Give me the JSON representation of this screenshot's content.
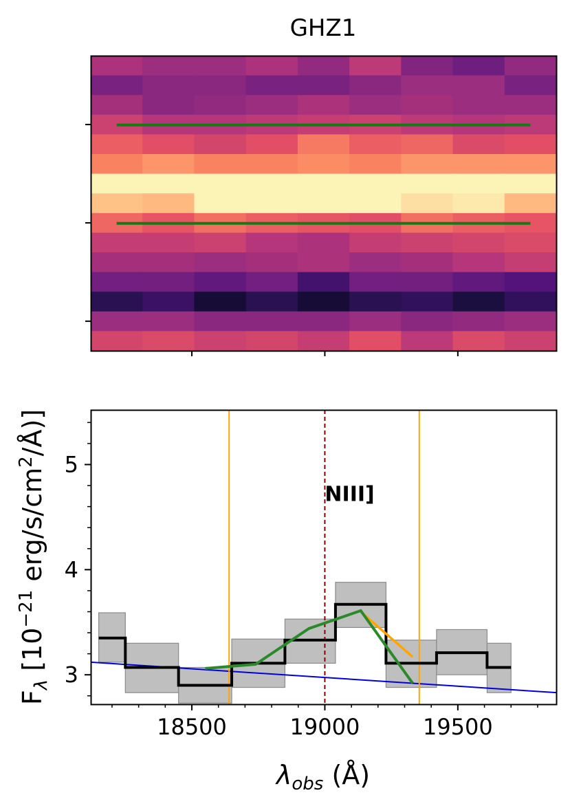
{
  "chart_data": [
    {
      "type": "heatmap",
      "title": "GHZ1",
      "grid": false,
      "colormap": "magma",
      "rows": 15,
      "cols": 9,
      "values": [
        [
          0.48,
          0.44,
          0.44,
          0.48,
          0.42,
          0.52,
          0.38,
          0.33,
          0.42
        ],
        [
          0.36,
          0.4,
          0.4,
          0.36,
          0.36,
          0.4,
          0.44,
          0.44,
          0.36
        ],
        [
          0.46,
          0.4,
          0.42,
          0.44,
          0.48,
          0.44,
          0.46,
          0.44,
          0.44
        ],
        [
          0.56,
          0.5,
          0.5,
          0.52,
          0.54,
          0.56,
          0.52,
          0.5,
          0.52
        ],
        [
          0.66,
          0.62,
          0.58,
          0.62,
          0.72,
          0.66,
          0.68,
          0.6,
          0.62
        ],
        [
          0.74,
          0.78,
          0.74,
          0.74,
          0.76,
          0.74,
          0.78,
          0.78,
          0.78
        ],
        [
          0.98,
          0.98,
          0.98,
          0.98,
          0.98,
          0.98,
          0.98,
          0.98,
          0.98
        ],
        [
          0.88,
          0.86,
          0.98,
          0.98,
          0.98,
          0.98,
          0.94,
          0.96,
          0.86
        ],
        [
          0.68,
          0.64,
          0.7,
          0.66,
          0.64,
          0.62,
          0.7,
          0.66,
          0.64
        ],
        [
          0.54,
          0.54,
          0.56,
          0.5,
          0.48,
          0.54,
          0.56,
          0.58,
          0.6
        ],
        [
          0.46,
          0.46,
          0.44,
          0.46,
          0.48,
          0.44,
          0.46,
          0.5,
          0.54
        ],
        [
          0.34,
          0.34,
          0.3,
          0.34,
          0.22,
          0.34,
          0.34,
          0.3,
          0.26
        ],
        [
          0.16,
          0.2,
          0.1,
          0.16,
          0.1,
          0.16,
          0.18,
          0.12,
          0.18
        ],
        [
          0.44,
          0.44,
          0.4,
          0.4,
          0.4,
          0.44,
          0.4,
          0.42,
          0.44
        ],
        [
          0.58,
          0.6,
          0.56,
          0.58,
          0.54,
          0.62,
          0.52,
          0.6,
          0.56
        ]
      ],
      "extraction_lines": [
        {
          "row_center": 3.5,
          "color": "#147a14"
        },
        {
          "row_center": 8.5,
          "color": "#147a14"
        }
      ],
      "y_tick_rows": [
        3.5,
        8.5,
        13.5
      ],
      "x_tick_wavelengths": [
        18500,
        19000,
        19500
      ],
      "colors": {
        "line": "#147a14"
      }
    },
    {
      "type": "line",
      "xlabel_symbol": "λ",
      "xlabel_sub": "obs",
      "xlabel_unit": " (Å)",
      "ylabel_prefix": "F",
      "ylabel_sub": "λ",
      "ylabel_mid": " [10",
      "ylabel_exp": "−21",
      "ylabel_mid2": " erg/s/cm",
      "ylabel_exp2": "2",
      "ylabel_suffix": "/Å)]",
      "xlim": [
        18120,
        19870
      ],
      "ylim": [
        2.72,
        5.52
      ],
      "xticks": [
        18500,
        19000,
        19500
      ],
      "xtick_labels": [
        "18500",
        "19000",
        "19500"
      ],
      "yticks": [
        3,
        4,
        5
      ],
      "ytick_labels": [
        "3",
        "4",
        "5"
      ],
      "grid": false,
      "annotation": {
        "text": "NIII]",
        "x": 19000,
        "y": 4.72
      },
      "colors": {
        "data": "#000000",
        "error": "#bfbfbf",
        "fit": "#2a8a2a",
        "fit_alt": "#ffa500",
        "continuum": "#0000dd",
        "window": "#ffa500",
        "line_marker": "#8b0000"
      },
      "series": [
        {
          "kind": "step",
          "color": "#000000",
          "bins": [
            {
              "x0": 18150,
              "x1": 18250,
              "y": 3.35,
              "lo": 3.12,
              "hi": 3.59
            },
            {
              "x0": 18250,
              "x1": 18450,
              "y": 3.07,
              "lo": 2.83,
              "hi": 3.3
            },
            {
              "x0": 18450,
              "x1": 18650,
              "y": 2.9,
              "lo": 2.73,
              "hi": 3.07
            },
            {
              "x0": 18650,
              "x1": 18850,
              "y": 3.11,
              "lo": 2.88,
              "hi": 3.34
            },
            {
              "x0": 18850,
              "x1": 19040,
              "y": 3.33,
              "lo": 3.11,
              "hi": 3.53
            },
            {
              "x0": 19040,
              "x1": 19230,
              "y": 3.67,
              "lo": 3.45,
              "hi": 3.88
            },
            {
              "x0": 19230,
              "x1": 19420,
              "y": 3.11,
              "lo": 2.88,
              "hi": 3.33
            },
            {
              "x0": 19420,
              "x1": 19610,
              "y": 3.21,
              "lo": 3.0,
              "hi": 3.43
            },
            {
              "x0": 19610,
              "x1": 19700,
              "y": 3.07,
              "lo": 2.83,
              "hi": 3.3
            }
          ]
        },
        {
          "kind": "line",
          "color": "#2a8a2a",
          "x": [
            18550,
            18740,
            18940,
            19135,
            19330
          ],
          "y": [
            3.06,
            3.1,
            3.44,
            3.61,
            2.92
          ]
        },
        {
          "kind": "line",
          "color": "#ffa500",
          "x": [
            19135,
            19330
          ],
          "y": [
            3.6,
            3.17
          ]
        },
        {
          "kind": "line",
          "color": "#0000dd",
          "x": [
            18120,
            19870
          ],
          "y": [
            3.12,
            2.83
          ]
        }
      ],
      "vlines": [
        {
          "x": 18640,
          "color": "#ffa500",
          "style": "solid"
        },
        {
          "x": 19000,
          "color": "#8b0000",
          "style": "dashed"
        },
        {
          "x": 19355,
          "color": "#ffa500",
          "style": "solid"
        }
      ]
    }
  ]
}
